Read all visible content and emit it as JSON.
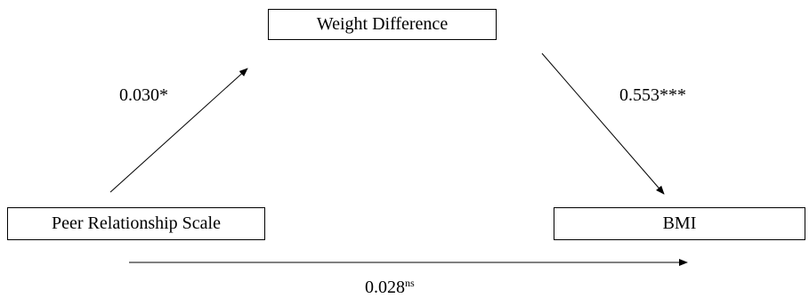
{
  "diagram": {
    "nodes": {
      "mediator": "Weight Difference",
      "predictor": "Peer Relationship Scale",
      "outcome": "BMI"
    },
    "paths": {
      "a": {
        "value": "0.030",
        "suffix": "*"
      },
      "b": {
        "value": "0.553",
        "suffix": "***"
      },
      "c": {
        "value": "0.028",
        "suffix": "ns"
      }
    }
  }
}
